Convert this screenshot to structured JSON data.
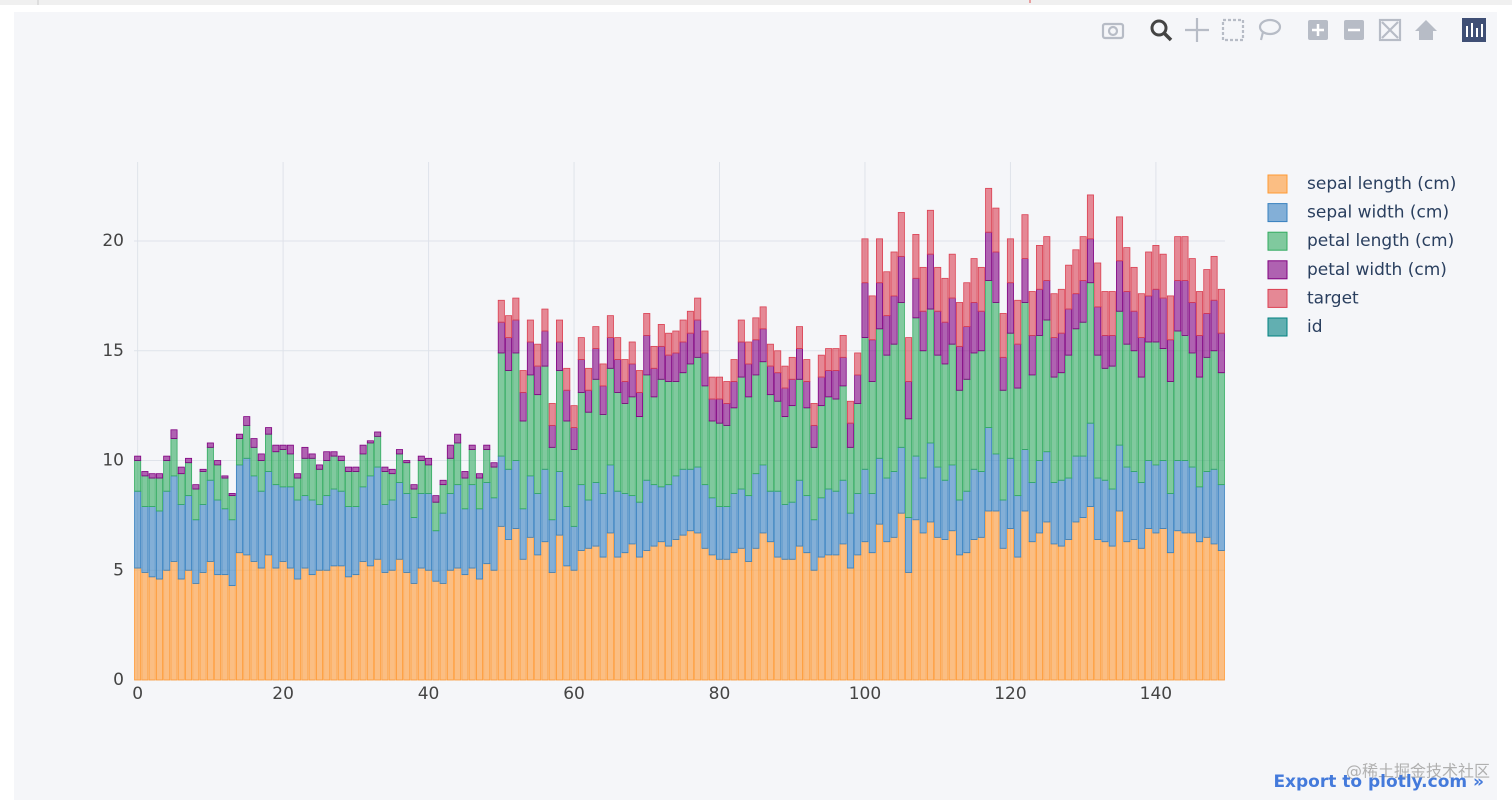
{
  "chart_data": {
    "type": "bar",
    "barmode": "stack",
    "grid": true,
    "x": [
      0,
      1,
      2,
      3,
      4,
      5,
      6,
      7,
      8,
      9,
      10,
      11,
      12,
      13,
      14,
      15,
      16,
      17,
      18,
      19,
      20,
      21,
      22,
      23,
      24,
      25,
      26,
      27,
      28,
      29,
      30,
      31,
      32,
      33,
      34,
      35,
      36,
      37,
      38,
      39,
      40,
      41,
      42,
      43,
      44,
      45,
      46,
      47,
      48,
      49,
      50,
      51,
      52,
      53,
      54,
      55,
      56,
      57,
      58,
      59,
      60,
      61,
      62,
      63,
      64,
      65,
      66,
      67,
      68,
      69,
      70,
      71,
      72,
      73,
      74,
      75,
      76,
      77,
      78,
      79,
      80,
      81,
      82,
      83,
      84,
      85,
      86,
      87,
      88,
      89,
      90,
      91,
      92,
      93,
      94,
      95,
      96,
      97,
      98,
      99,
      100,
      101,
      102,
      103,
      104,
      105,
      106,
      107,
      108,
      109,
      110,
      111,
      112,
      113,
      114,
      115,
      116,
      117,
      118,
      119,
      120,
      121,
      122,
      123,
      124,
      125,
      126,
      127,
      128,
      129,
      130,
      131,
      132,
      133,
      134,
      135,
      136,
      137,
      138,
      139,
      140,
      141,
      142,
      143,
      144,
      145,
      146,
      147,
      148,
      149
    ],
    "xlim": [
      -0.5,
      149.5
    ],
    "xticks": [
      0,
      20,
      40,
      60,
      80,
      100,
      120,
      140
    ],
    "ylim": [
      0,
      23.6
    ],
    "yticks": [
      0,
      5,
      10,
      15,
      20
    ],
    "series": [
      {
        "name": "sepal length (cm)",
        "color": "#ff9933",
        "values": [
          5.1,
          4.9,
          4.7,
          4.6,
          5.0,
          5.4,
          4.6,
          5.0,
          4.4,
          4.9,
          5.4,
          4.8,
          4.8,
          4.3,
          5.8,
          5.7,
          5.4,
          5.1,
          5.7,
          5.1,
          5.4,
          5.1,
          4.6,
          5.1,
          4.8,
          5.0,
          5.0,
          5.2,
          5.2,
          4.7,
          4.8,
          5.4,
          5.2,
          5.5,
          4.9,
          5.0,
          5.5,
          4.9,
          4.4,
          5.1,
          5.0,
          4.5,
          4.4,
          5.0,
          5.1,
          4.8,
          5.1,
          4.6,
          5.3,
          5.0,
          7.0,
          6.4,
          6.9,
          5.5,
          6.5,
          5.7,
          6.3,
          4.9,
          6.6,
          5.2,
          5.0,
          5.9,
          6.0,
          6.1,
          5.6,
          6.7,
          5.6,
          5.8,
          6.2,
          5.6,
          5.9,
          6.1,
          6.3,
          6.1,
          6.4,
          6.6,
          6.8,
          6.7,
          6.0,
          5.7,
          5.5,
          5.5,
          5.8,
          6.0,
          5.4,
          6.0,
          6.7,
          6.3,
          5.6,
          5.5,
          5.5,
          6.1,
          5.8,
          5.0,
          5.6,
          5.7,
          5.7,
          6.2,
          5.1,
          5.7,
          6.3,
          5.8,
          7.1,
          6.3,
          6.5,
          7.6,
          4.9,
          7.3,
          6.7,
          7.2,
          6.5,
          6.4,
          6.8,
          5.7,
          5.8,
          6.4,
          6.5,
          7.7,
          7.7,
          6.0,
          6.9,
          5.6,
          7.7,
          6.3,
          6.7,
          7.2,
          6.2,
          6.1,
          6.4,
          7.2,
          7.4,
          7.9,
          6.4,
          6.3,
          6.1,
          7.7,
          6.3,
          6.4,
          6.0,
          6.9,
          6.7,
          6.9,
          5.8,
          6.8,
          6.7,
          6.7,
          6.3,
          6.5,
          6.2,
          5.9
        ]
      },
      {
        "name": "sepal width (cm)",
        "color": "#3780bf",
        "values": [
          3.5,
          3.0,
          3.2,
          3.1,
          3.6,
          3.9,
          3.4,
          3.4,
          2.9,
          3.1,
          3.7,
          3.4,
          3.0,
          3.0,
          4.0,
          4.4,
          3.9,
          3.5,
          3.8,
          3.8,
          3.4,
          3.7,
          3.6,
          3.3,
          3.4,
          3.0,
          3.4,
          3.5,
          3.4,
          3.2,
          3.1,
          3.4,
          4.1,
          4.2,
          3.1,
          3.2,
          3.5,
          3.6,
          3.0,
          3.4,
          3.5,
          2.3,
          3.2,
          3.5,
          3.8,
          3.0,
          3.8,
          3.2,
          3.7,
          3.3,
          3.2,
          3.2,
          3.1,
          2.3,
          2.8,
          2.8,
          3.3,
          2.4,
          2.9,
          2.7,
          2.0,
          3.0,
          2.2,
          2.9,
          2.9,
          3.1,
          3.0,
          2.7,
          2.2,
          2.5,
          3.2,
          2.8,
          2.5,
          2.8,
          2.9,
          3.0,
          2.8,
          3.0,
          2.9,
          2.6,
          2.4,
          2.4,
          2.7,
          2.7,
          3.0,
          3.4,
          3.1,
          2.3,
          3.0,
          2.5,
          2.6,
          3.0,
          2.6,
          2.3,
          2.7,
          3.0,
          2.9,
          2.9,
          2.5,
          2.8,
          3.3,
          2.7,
          3.0,
          2.9,
          3.0,
          3.0,
          2.5,
          2.9,
          2.5,
          3.6,
          3.2,
          2.7,
          3.0,
          2.5,
          2.8,
          3.2,
          3.0,
          3.8,
          2.6,
          2.2,
          3.2,
          2.8,
          2.8,
          2.7,
          3.3,
          3.2,
          2.8,
          3.0,
          2.8,
          3.0,
          2.8,
          3.8,
          2.8,
          2.8,
          2.6,
          3.0,
          3.4,
          3.1,
          3.0,
          3.1,
          3.1,
          3.1,
          2.7,
          3.2,
          3.3,
          3.0,
          2.5,
          3.0,
          3.4,
          3.0
        ]
      },
      {
        "name": "petal length (cm)",
        "color": "#32ab60",
        "values": [
          1.4,
          1.4,
          1.3,
          1.5,
          1.4,
          1.7,
          1.4,
          1.5,
          1.4,
          1.5,
          1.5,
          1.6,
          1.4,
          1.1,
          1.2,
          1.5,
          1.3,
          1.4,
          1.7,
          1.5,
          1.7,
          1.5,
          1.0,
          1.7,
          1.9,
          1.6,
          1.6,
          1.5,
          1.4,
          1.6,
          1.6,
          1.5,
          1.5,
          1.4,
          1.5,
          1.2,
          1.3,
          1.4,
          1.3,
          1.5,
          1.3,
          1.3,
          1.3,
          1.6,
          1.9,
          1.4,
          1.6,
          1.4,
          1.5,
          1.4,
          4.7,
          4.5,
          4.9,
          4.0,
          4.6,
          4.5,
          4.7,
          3.3,
          4.6,
          3.9,
          3.5,
          4.2,
          4.0,
          4.7,
          3.6,
          4.4,
          4.5,
          4.1,
          4.5,
          3.9,
          4.8,
          4.0,
          4.9,
          4.7,
          4.3,
          4.4,
          4.8,
          5.0,
          4.5,
          3.5,
          3.8,
          3.7,
          3.9,
          5.1,
          4.5,
          4.5,
          4.7,
          4.4,
          4.1,
          4.0,
          4.4,
          4.6,
          4.0,
          3.3,
          4.2,
          4.2,
          4.2,
          4.3,
          3.0,
          4.1,
          6.0,
          5.1,
          5.9,
          5.6,
          5.8,
          6.6,
          4.5,
          6.3,
          5.8,
          6.1,
          5.1,
          5.3,
          5.5,
          5.0,
          5.1,
          5.3,
          5.5,
          6.7,
          6.9,
          5.0,
          5.7,
          4.9,
          6.7,
          4.9,
          5.7,
          6.0,
          4.8,
          4.9,
          5.6,
          5.8,
          6.1,
          6.4,
          5.6,
          5.1,
          5.6,
          6.1,
          5.6,
          5.5,
          4.8,
          5.4,
          5.6,
          5.1,
          5.1,
          5.9,
          5.7,
          5.2,
          5.0,
          5.2,
          5.4,
          5.1
        ]
      },
      {
        "name": "petal width (cm)",
        "color": "#800080",
        "values": [
          0.2,
          0.2,
          0.2,
          0.2,
          0.2,
          0.4,
          0.3,
          0.2,
          0.2,
          0.1,
          0.2,
          0.2,
          0.1,
          0.1,
          0.2,
          0.4,
          0.4,
          0.3,
          0.3,
          0.3,
          0.2,
          0.4,
          0.2,
          0.5,
          0.2,
          0.2,
          0.4,
          0.2,
          0.2,
          0.2,
          0.2,
          0.4,
          0.1,
          0.2,
          0.2,
          0.2,
          0.2,
          0.1,
          0.2,
          0.2,
          0.3,
          0.3,
          0.2,
          0.6,
          0.4,
          0.3,
          0.2,
          0.2,
          0.2,
          0.2,
          1.4,
          1.5,
          1.5,
          1.3,
          1.5,
          1.3,
          1.6,
          1.0,
          1.3,
          1.4,
          1.0,
          1.5,
          1.0,
          1.4,
          1.3,
          1.4,
          1.5,
          1.0,
          1.5,
          1.1,
          1.8,
          1.3,
          1.5,
          1.2,
          1.3,
          1.4,
          1.4,
          1.7,
          1.5,
          1.0,
          1.1,
          1.0,
          1.2,
          1.6,
          1.5,
          1.6,
          1.5,
          1.3,
          1.3,
          1.3,
          1.2,
          1.4,
          1.2,
          1.0,
          1.3,
          1.2,
          1.3,
          1.3,
          1.1,
          1.3,
          2.5,
          1.9,
          2.1,
          1.8,
          2.2,
          2.1,
          1.7,
          1.8,
          1.8,
          2.5,
          2.0,
          1.9,
          2.1,
          2.0,
          2.4,
          2.3,
          1.8,
          2.2,
          2.3,
          1.5,
          2.3,
          2.0,
          2.0,
          1.8,
          2.1,
          1.8,
          1.8,
          1.8,
          2.1,
          1.6,
          1.9,
          2.0,
          2.2,
          1.5,
          1.4,
          2.3,
          2.4,
          1.8,
          1.8,
          2.1,
          2.4,
          2.3,
          1.9,
          2.3,
          2.5,
          2.3,
          1.9,
          2.0,
          2.3,
          1.8
        ]
      },
      {
        "name": "target",
        "color": "#db4052",
        "values": [
          0,
          0,
          0,
          0,
          0,
          0,
          0,
          0,
          0,
          0,
          0,
          0,
          0,
          0,
          0,
          0,
          0,
          0,
          0,
          0,
          0,
          0,
          0,
          0,
          0,
          0,
          0,
          0,
          0,
          0,
          0,
          0,
          0,
          0,
          0,
          0,
          0,
          0,
          0,
          0,
          0,
          0,
          0,
          0,
          0,
          0,
          0,
          0,
          0,
          0,
          1,
          1,
          1,
          1,
          1,
          1,
          1,
          1,
          1,
          1,
          1,
          1,
          1,
          1,
          1,
          1,
          1,
          1,
          1,
          1,
          1,
          1,
          1,
          1,
          1,
          1,
          1,
          1,
          1,
          1,
          1,
          1,
          1,
          1,
          1,
          1,
          1,
          1,
          1,
          1,
          1,
          1,
          1,
          1,
          1,
          1,
          1,
          1,
          1,
          1,
          2,
          2,
          2,
          2,
          2,
          2,
          2,
          2,
          2,
          2,
          2,
          2,
          2,
          2,
          2,
          2,
          2,
          2,
          2,
          2,
          2,
          2,
          2,
          2,
          2,
          2,
          2,
          2,
          2,
          2,
          2,
          2,
          2,
          2,
          2,
          2,
          2,
          2,
          2,
          2,
          2,
          2,
          2,
          2,
          2,
          2,
          2,
          2,
          2,
          2
        ]
      },
      {
        "name": "id",
        "color": "#008080",
        "values": [
          null,
          null,
          null,
          null,
          null,
          null,
          null,
          null,
          null,
          null,
          null,
          null,
          null,
          null,
          null,
          null,
          null,
          null,
          null,
          null,
          null,
          null,
          null,
          null,
          null,
          null,
          null,
          null,
          null,
          null,
          null,
          null,
          null,
          null,
          null,
          null,
          null,
          null,
          null,
          null,
          null,
          null,
          null,
          null,
          null,
          null,
          null,
          null,
          null,
          null,
          null,
          null,
          null,
          null,
          null,
          null,
          null,
          null,
          null,
          null,
          null,
          null,
          null,
          null,
          null,
          null,
          null,
          null,
          null,
          null,
          null,
          null,
          null,
          null,
          null,
          null,
          null,
          null,
          null,
          null,
          null,
          null,
          null,
          null,
          null,
          null,
          null,
          null,
          null,
          null,
          null,
          null,
          null,
          null,
          null,
          null,
          null,
          null,
          null,
          null,
          null,
          null,
          null,
          null,
          null,
          null,
          null,
          null,
          null,
          null,
          null,
          null,
          null,
          null,
          null,
          null,
          null,
          null,
          null,
          null,
          null,
          null,
          null,
          null,
          null,
          null,
          null,
          null,
          null,
          null,
          null,
          null,
          null,
          null,
          null,
          null,
          null,
          null,
          null,
          null,
          null,
          null,
          null,
          null,
          null,
          null,
          null,
          null,
          null,
          null
        ]
      }
    ]
  },
  "export_link": "Export to plotly.com »",
  "watermark": "@稀土掘金技术社区"
}
